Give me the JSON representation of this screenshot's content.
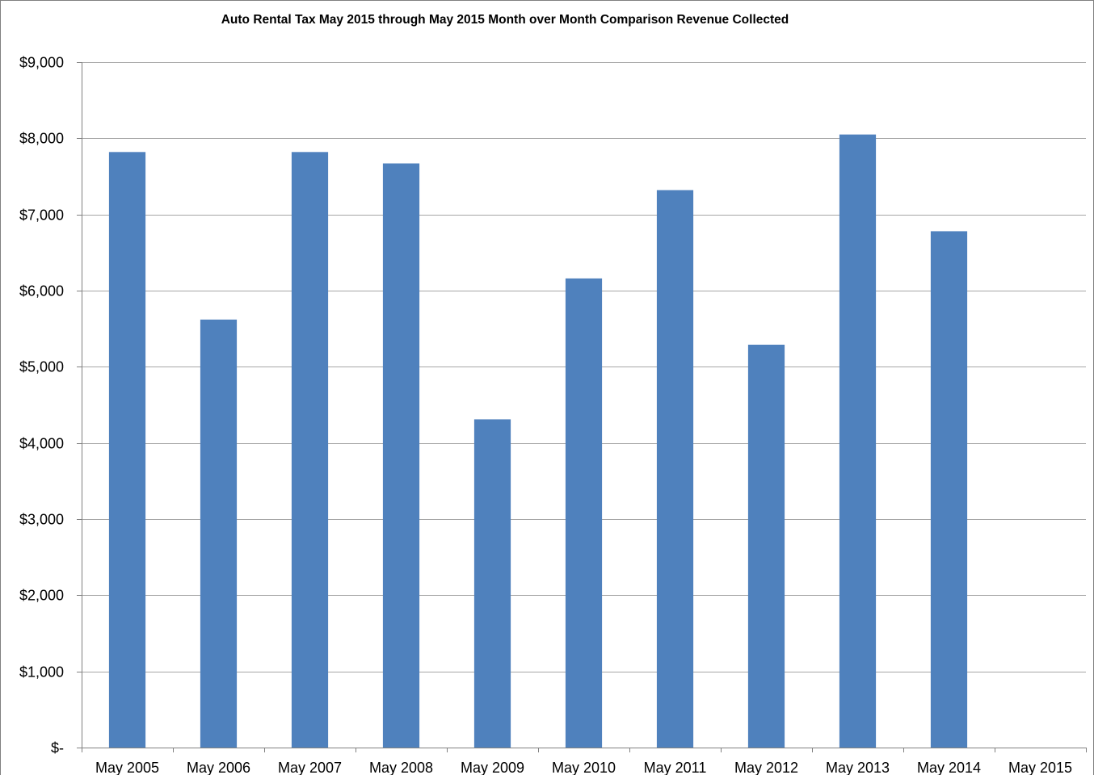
{
  "chart_data": {
    "type": "bar",
    "title": "Auto Rental Tax May 2015 through May 2015 Month over Month Comparison Revenue Collected",
    "categories": [
      "May 2005",
      "May 2006",
      "May 2007",
      "May 2008",
      "May 2009",
      "May 2010",
      "May 2011",
      "May 2012",
      "May 2013",
      "May 2014",
      "May 2015"
    ],
    "values": [
      7820,
      5620,
      7820,
      7670,
      4310,
      6160,
      7320,
      5290,
      8050,
      6780,
      null
    ],
    "ylim": [
      0,
      9000
    ],
    "yticks": [
      0,
      1000,
      2000,
      3000,
      4000,
      5000,
      6000,
      7000,
      8000,
      9000
    ],
    "ytick_labels": [
      "$-",
      "$1,000",
      "$2,000",
      "$3,000",
      "$4,000",
      "$5,000",
      "$6,000",
      "$7,000",
      "$8,000",
      "$9,000"
    ],
    "xlabel": "",
    "ylabel": "",
    "grid": true,
    "legend": "none",
    "bar_color": "#4F81BD",
    "grid_color": "#A6A6A6",
    "axis_color": "#808080"
  }
}
